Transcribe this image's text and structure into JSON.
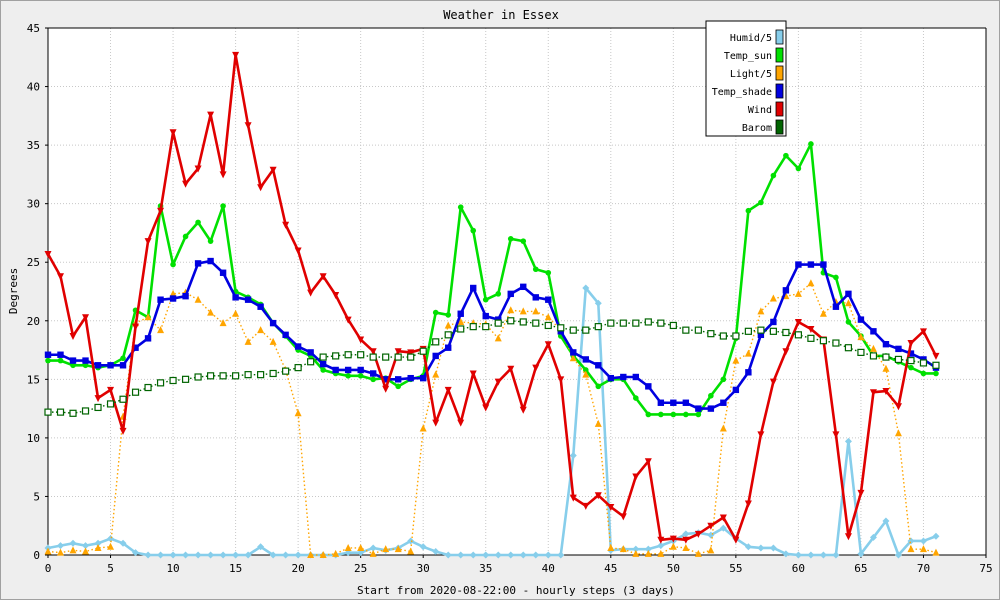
{
  "chart_data": {
    "type": "line",
    "title": "Weather in Essex",
    "xlabel": "Start from 2020-08-22:00 - hourly steps (3 days)",
    "ylabel": "Degrees",
    "xlim": [
      0,
      75
    ],
    "ylim": [
      0,
      45
    ],
    "xticks": [
      0,
      5,
      10,
      15,
      20,
      25,
      30,
      35,
      40,
      45,
      50,
      55,
      60,
      65,
      70,
      75
    ],
    "yticks": [
      0,
      5,
      10,
      15,
      20,
      25,
      30,
      35,
      40,
      45
    ],
    "grid": true,
    "legend_position": "top-right",
    "series": [
      {
        "name": "Humid/5",
        "color": "#87ceeb",
        "style": "solid",
        "marker": "diamond",
        "values": [
          0.6,
          0.8,
          1.0,
          0.8,
          1.0,
          1.4,
          1.0,
          0.2,
          0,
          0,
          0,
          0,
          0,
          0,
          0,
          0,
          0,
          0.7,
          0,
          0,
          0,
          0,
          0,
          0,
          0.2,
          0.2,
          0.6,
          0.4,
          0.6,
          1.2,
          0.7,
          0.3,
          0,
          0,
          0,
          0,
          0,
          0,
          0,
          0,
          0,
          0,
          8.5,
          22.8,
          21.5,
          0.4,
          0.5,
          0.5,
          0.5,
          0.8,
          1.2,
          1.8,
          1.9,
          1.7,
          2.3,
          1.4,
          0.7,
          0.6,
          0.6,
          0.1,
          0,
          0,
          0,
          0,
          9.7,
          0.1,
          1.5,
          2.9,
          0,
          1.2,
          1.2,
          1.6
        ]
      },
      {
        "name": "Temp_sun",
        "color": "#00e000",
        "style": "solid",
        "marker": "circle",
        "values": [
          16.6,
          16.6,
          16.2,
          16.2,
          16.0,
          16.2,
          16.8,
          20.9,
          20.3,
          29.8,
          24.8,
          27.2,
          28.4,
          26.8,
          29.8,
          22.5,
          22.0,
          21.4,
          19.8,
          18.7,
          17.5,
          17.0,
          15.8,
          15.5,
          15.3,
          15.3,
          15.0,
          15.1,
          14.4,
          15.0,
          15.3,
          20.7,
          20.5,
          29.7,
          27.7,
          21.8,
          22.3,
          27.0,
          26.8,
          24.4,
          24.1,
          18.7,
          17.0,
          15.8,
          14.4,
          15.0,
          15.0,
          13.4,
          12.0,
          12.0,
          12.0,
          12.0,
          12.0,
          13.6,
          15.0,
          18.5,
          29.4,
          30.1,
          32.4,
          34.1,
          33.0,
          35.1,
          24.1,
          23.7,
          19.9,
          18.7,
          17.0,
          17.0,
          16.5,
          16.0,
          15.5,
          15.5
        ]
      },
      {
        "name": "Light/5",
        "color": "#ffa500",
        "style": "dotted",
        "marker": "triangle-up",
        "values": [
          0.3,
          0.2,
          0.4,
          0.3,
          0.6,
          0.7,
          11.8,
          19.8,
          20.3,
          19.2,
          22.3,
          22.4,
          21.8,
          20.7,
          19.8,
          20.6,
          18.2,
          19.2,
          18.2,
          15.8,
          12.1,
          0,
          0,
          0.1,
          0.6,
          0.6,
          0.1,
          0.5,
          0.5,
          0.3,
          10.8,
          15.4,
          19.6,
          19.9,
          19.8,
          19.7,
          18.5,
          20.9,
          20.8,
          20.8,
          20.3,
          19.2,
          16.8,
          15.4,
          11.2,
          0.6,
          0.5,
          0.1,
          0.1,
          0.1,
          0.7,
          0.6,
          0.1,
          0.4,
          10.8,
          16.6,
          17.2,
          20.8,
          21.9,
          22.1,
          22.3,
          23.2,
          20.6,
          21.6,
          21.5,
          18.6,
          17.6,
          15.9,
          10.4,
          0.5,
          0.5,
          0.2
        ]
      },
      {
        "name": "Temp_shade",
        "color": "#0000e0",
        "style": "solid",
        "marker": "square",
        "values": [
          17.1,
          17.1,
          16.6,
          16.6,
          16.2,
          16.2,
          16.2,
          17.7,
          18.5,
          21.8,
          21.9,
          22.1,
          24.9,
          25.1,
          24.1,
          22.0,
          21.8,
          21.2,
          19.8,
          18.8,
          17.8,
          17.3,
          16.3,
          15.8,
          15.8,
          15.8,
          15.5,
          15.0,
          15.0,
          15.1,
          15.1,
          17.0,
          17.7,
          20.6,
          22.8,
          20.4,
          20.1,
          22.3,
          22.9,
          22.0,
          21.8,
          19.1,
          17.3,
          16.7,
          16.2,
          15.1,
          15.2,
          15.2,
          14.4,
          13.0,
          13.0,
          13.0,
          12.5,
          12.5,
          13.0,
          14.1,
          15.6,
          18.8,
          19.9,
          22.6,
          24.8,
          24.8,
          24.8,
          21.2,
          22.3,
          20.1,
          19.1,
          18.0,
          17.6,
          17.2,
          16.7,
          16.0
        ]
      },
      {
        "name": "Wind",
        "color": "#e00000",
        "style": "solid",
        "marker": "triangle-down",
        "values": [
          25.7,
          23.8,
          18.7,
          20.3,
          13.4,
          14.1,
          10.6,
          19.5,
          26.8,
          29.4,
          36.1,
          31.7,
          33.0,
          37.6,
          32.5,
          42.7,
          36.7,
          31.4,
          32.9,
          28.2,
          26.0,
          22.4,
          23.8,
          22.2,
          20.1,
          18.4,
          17.4,
          14.2,
          17.4,
          17.3,
          17.6,
          11.3,
          14.1,
          11.3,
          15.5,
          12.6,
          14.8,
          15.9,
          12.4,
          16.0,
          18.0,
          15.0,
          4.9,
          4.2,
          5.1,
          4.1,
          3.3,
          6.7,
          8.0,
          1.3,
          1.4,
          1.3,
          1.8,
          2.5,
          3.2,
          1.3,
          4.4,
          10.3,
          14.8,
          17.4,
          19.9,
          19.3,
          18.4,
          10.3,
          1.6,
          5.3,
          13.9,
          14.0,
          12.7,
          18.1,
          19.1,
          17.0
        ]
      },
      {
        "name": "Barom",
        "color": "#006400",
        "style": "dotted",
        "marker": "open-square",
        "values": [
          12.2,
          12.2,
          12.1,
          12.3,
          12.6,
          12.9,
          13.3,
          13.9,
          14.3,
          14.7,
          14.9,
          15.0,
          15.2,
          15.3,
          15.3,
          15.3,
          15.4,
          15.4,
          15.5,
          15.7,
          16.0,
          16.5,
          16.9,
          17.0,
          17.1,
          17.1,
          16.9,
          16.9,
          16.9,
          16.9,
          17.4,
          18.2,
          18.8,
          19.3,
          19.5,
          19.5,
          19.8,
          20.0,
          19.9,
          19.8,
          19.6,
          19.4,
          19.2,
          19.2,
          19.5,
          19.8,
          19.8,
          19.8,
          19.9,
          19.8,
          19.6,
          19.2,
          19.2,
          18.9,
          18.7,
          18.7,
          19.1,
          19.2,
          19.1,
          19.0,
          18.8,
          18.5,
          18.3,
          18.1,
          17.7,
          17.3,
          17.0,
          16.9,
          16.7,
          16.6,
          16.4,
          16.2
        ]
      }
    ]
  }
}
